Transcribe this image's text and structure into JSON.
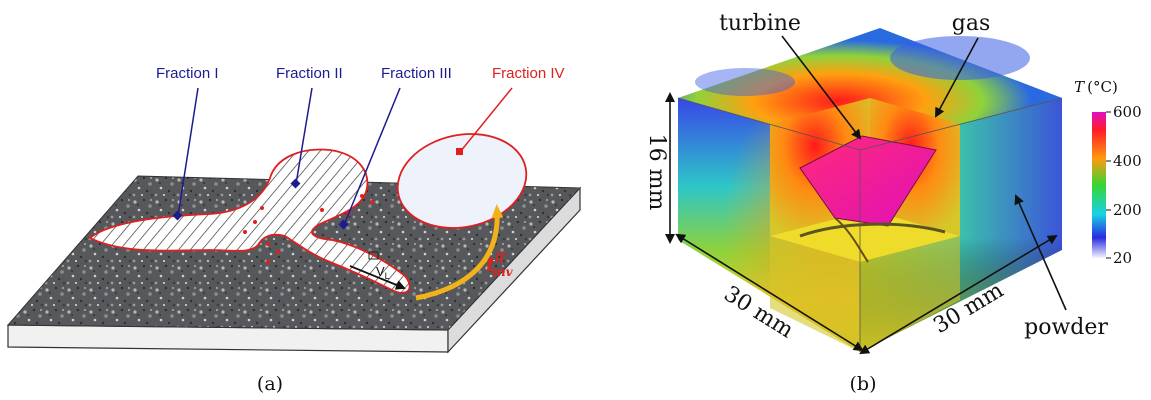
{
  "panel_a": {
    "caption": "(a)",
    "labels": {
      "fraction_1": "Fraction I",
      "fraction_2": "Fraction II",
      "fraction_3": "Fraction III",
      "fraction_4": "Fraction IV",
      "velocity": "V",
      "velocity_sub": "L",
      "time_main": "t",
      "time_sup": "lf",
      "time_sub": "mv"
    },
    "colors": {
      "blue": "#1c1c8f",
      "red": "#e01f1f",
      "arrow": "#f2b21b"
    }
  },
  "panel_b": {
    "caption": "(b)",
    "labels": {
      "turbine": "turbine",
      "gas": "gas",
      "powder": "powder",
      "height": "16 mm",
      "depth": "30 mm",
      "width": "30 mm"
    },
    "colorbar": {
      "title_var": "T",
      "title_unit": "(°C)",
      "ticks": [
        "600",
        "400",
        "200",
        "20"
      ]
    }
  }
}
